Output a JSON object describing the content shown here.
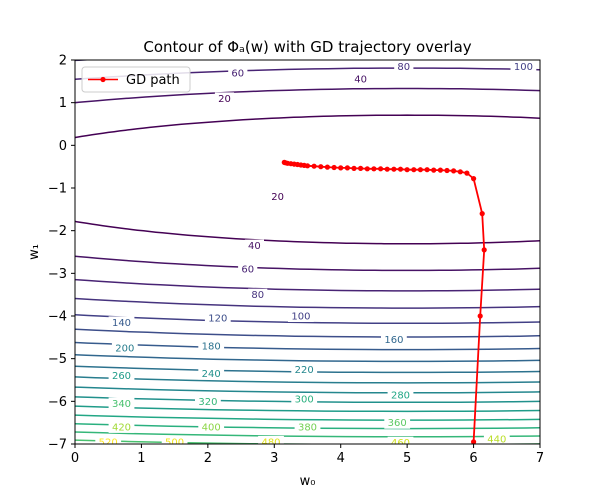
{
  "chart_data": {
    "type": "contour",
    "title": "Contour of Φₐ(w) with GD trajectory overlay",
    "xlabel": "w₀",
    "ylabel": "w₁",
    "xlim": [
      0,
      7
    ],
    "ylim": [
      -7,
      2
    ],
    "xticks": [
      "0",
      "1",
      "2",
      "3",
      "4",
      "5",
      "6",
      "7"
    ],
    "yticks": [
      "−7",
      "−6",
      "−5",
      "−4",
      "−3",
      "−2",
      "−1",
      "0",
      "1",
      "2"
    ],
    "grid": false,
    "legend": {
      "placement": "top-left",
      "entries": [
        "GD path"
      ]
    },
    "contour_levels": [
      20,
      40,
      60,
      80,
      100,
      120,
      140,
      160,
      180,
      200,
      220,
      240,
      260,
      280,
      300,
      320,
      340,
      360,
      380,
      400,
      420,
      440,
      460,
      480,
      500,
      520
    ],
    "level_colors": {
      "20": "#440154",
      "40": "#471365",
      "60": "#482374",
      "80": "#46337e",
      "100": "#424086",
      "120": "#3d4e8a",
      "140": "#375b8d",
      "160": "#31678e",
      "180": "#2c728e",
      "200": "#287d8e",
      "220": "#24878e",
      "240": "#21918c",
      "260": "#1f9c89",
      "280": "#22a785",
      "300": "#2ab07f",
      "320": "#35b779",
      "340": "#48c16e",
      "360": "#5dc963",
      "380": "#74d055",
      "400": "#8bd646",
      "420": "#a2da37",
      "440": "#bade28",
      "460": "#d0e11c",
      "480": "#e2e418",
      "500": "#f1e51d",
      "520": "#fde725"
    },
    "contour_labels": [
      {
        "text": "100",
        "x": 6.75,
        "y": 1.85
      },
      {
        "text": "80",
        "x": 4.95,
        "y": 1.85
      },
      {
        "text": "60",
        "x": 2.45,
        "y": 1.7
      },
      {
        "text": "40",
        "x": 4.3,
        "y": 1.55
      },
      {
        "text": "20",
        "x": 2.25,
        "y": 1.1
      },
      {
        "text": "20",
        "x": 3.05,
        "y": -1.2
      },
      {
        "text": "40",
        "x": 2.7,
        "y": -2.35
      },
      {
        "text": "60",
        "x": 2.6,
        "y": -2.9
      },
      {
        "text": "80",
        "x": 2.75,
        "y": -3.5
      },
      {
        "text": "100",
        "x": 3.4,
        "y": -4.0
      },
      {
        "text": "140",
        "x": 0.7,
        "y": -4.15
      },
      {
        "text": "120",
        "x": 2.15,
        "y": -4.05
      },
      {
        "text": "160",
        "x": 4.8,
        "y": -4.55
      },
      {
        "text": "200",
        "x": 0.75,
        "y": -4.75
      },
      {
        "text": "180",
        "x": 2.05,
        "y": -4.7
      },
      {
        "text": "220",
        "x": 3.45,
        "y": -5.25
      },
      {
        "text": "260",
        "x": 0.7,
        "y": -5.4
      },
      {
        "text": "240",
        "x": 2.05,
        "y": -5.35
      },
      {
        "text": "280",
        "x": 4.9,
        "y": -5.85
      },
      {
        "text": "340",
        "x": 0.7,
        "y": -6.05
      },
      {
        "text": "320",
        "x": 2.0,
        "y": -6.0
      },
      {
        "text": "300",
        "x": 3.45,
        "y": -5.95
      },
      {
        "text": "360",
        "x": 4.85,
        "y": -6.5
      },
      {
        "text": "420",
        "x": 0.7,
        "y": -6.6
      },
      {
        "text": "400",
        "x": 2.05,
        "y": -6.6
      },
      {
        "text": "380",
        "x": 3.5,
        "y": -6.6
      },
      {
        "text": "520",
        "x": 0.5,
        "y": -6.95
      },
      {
        "text": "500",
        "x": 1.5,
        "y": -6.95
      },
      {
        "text": "480",
        "x": 2.95,
        "y": -6.95
      },
      {
        "text": "460",
        "x": 4.9,
        "y": -6.97
      },
      {
        "text": "440",
        "x": 6.35,
        "y": -6.88
      }
    ],
    "series": [
      {
        "name": "GD path",
        "color": "#ff0000",
        "x": [
          6.0,
          6.1,
          6.16,
          6.13,
          6.0,
          5.9,
          5.8,
          5.7,
          5.6,
          5.5,
          5.4,
          5.3,
          5.2,
          5.1,
          5.0,
          4.9,
          4.8,
          4.7,
          4.6,
          4.5,
          4.4,
          4.3,
          4.2,
          4.1,
          4.0,
          3.9,
          3.8,
          3.7,
          3.6,
          3.5,
          3.45,
          3.4,
          3.35,
          3.3,
          3.25,
          3.2,
          3.17,
          3.15
        ],
        "y": [
          -6.95,
          -4.0,
          -2.45,
          -1.6,
          -0.78,
          -0.65,
          -0.62,
          -0.6,
          -0.59,
          -0.58,
          -0.58,
          -0.57,
          -0.57,
          -0.57,
          -0.57,
          -0.56,
          -0.56,
          -0.56,
          -0.55,
          -0.55,
          -0.55,
          -0.54,
          -0.54,
          -0.53,
          -0.53,
          -0.52,
          -0.51,
          -0.5,
          -0.49,
          -0.48,
          -0.47,
          -0.46,
          -0.45,
          -0.44,
          -0.43,
          -0.42,
          -0.41,
          -0.4
        ]
      }
    ]
  }
}
